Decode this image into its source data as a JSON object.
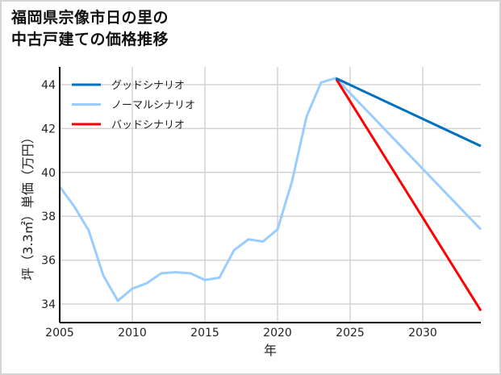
{
  "title": {
    "line1": "福岡県宗像市日の里の",
    "line2": "中古戸建ての価格推移"
  },
  "chart_data": {
    "type": "line",
    "title": "福岡県宗像市日の里の中古戸建ての価格推移",
    "xlabel": "年",
    "ylabel": "坪（3.3㎡）単価（万円）",
    "xlim": [
      2005,
      2034
    ],
    "ylim": [
      33.2,
      45.0
    ],
    "x_ticks": [
      2005,
      2010,
      2015,
      2020,
      2025,
      2030
    ],
    "y_ticks": [
      34,
      36,
      38,
      40,
      42,
      44
    ],
    "grid": true,
    "legend_position": "upper left",
    "historical": {
      "x": [
        2005,
        2006,
        2007,
        2008,
        2009,
        2010,
        2011,
        2012,
        2013,
        2014,
        2015,
        2016,
        2017,
        2018,
        2019,
        2020,
        2021,
        2022,
        2023,
        2024
      ],
      "y": [
        39.35,
        38.45,
        37.35,
        35.3,
        34.15,
        34.7,
        34.95,
        35.4,
        35.45,
        35.4,
        35.1,
        35.2,
        36.45,
        36.95,
        36.85,
        37.4,
        39.6,
        42.55,
        44.1,
        44.3
      ],
      "color": "#99ccff"
    },
    "series": [
      {
        "name": "グッドシナリオ",
        "color": "#0070c0",
        "x": [
          2024,
          2034
        ],
        "y": [
          44.3,
          41.2
        ]
      },
      {
        "name": "ノーマルシナリオ",
        "color": "#99ccff",
        "x": [
          2024,
          2034
        ],
        "y": [
          44.3,
          37.4
        ]
      },
      {
        "name": "バッドシナリオ",
        "color": "#ff0000",
        "x": [
          2024,
          2034
        ],
        "y": [
          44.3,
          33.7
        ]
      }
    ]
  },
  "axis": {
    "x_label": "年",
    "y_label": "坪（3.3㎡）単価（万円）",
    "x_ticks": [
      "2005",
      "2010",
      "2015",
      "2020",
      "2025",
      "2030"
    ],
    "y_ticks": [
      "44",
      "42",
      "40",
      "38",
      "36",
      "34"
    ]
  },
  "legend": [
    {
      "label": "グッドシナリオ",
      "color": "#0070c0"
    },
    {
      "label": "ノーマルシナリオ",
      "color": "#99ccff"
    },
    {
      "label": "バッドシナリオ",
      "color": "#ff0000"
    }
  ]
}
